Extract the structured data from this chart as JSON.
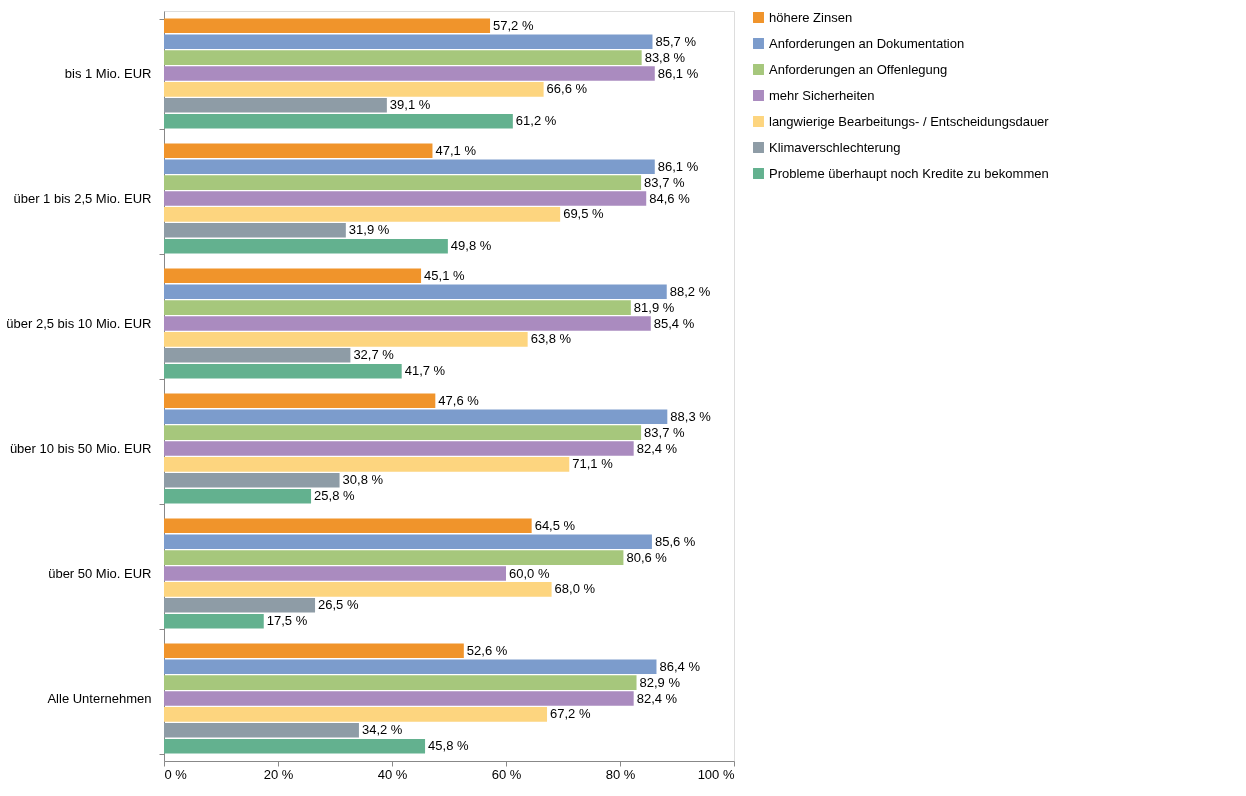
{
  "chart_data": {
    "type": "bar",
    "orientation": "horizontal",
    "legend": "right",
    "grid": false,
    "categories": [
      "bis 1 Mio. EUR",
      "über 1 bis 2,5 Mio. EUR",
      "über 2,5 bis 10 Mio. EUR",
      "über 10 bis 50 Mio. EUR",
      "über 50 Mio. EUR",
      "Alle Unternehmen"
    ],
    "xlim": [
      0,
      100
    ],
    "xticks": [
      {
        "value": 0,
        "label": "0 %"
      },
      {
        "value": 20,
        "label": "20 %"
      },
      {
        "value": 40,
        "label": "40 %"
      },
      {
        "value": 60,
        "label": "60 %"
      },
      {
        "value": 80,
        "label": "80 %"
      },
      {
        "value": 100,
        "label": "100 %"
      }
    ],
    "series": [
      {
        "name": "höhere Zinsen",
        "color": "#f0942b",
        "values": [
          57.2,
          47.1,
          45.1,
          47.6,
          64.5,
          52.6
        ],
        "value_labels": [
          "57,2 %",
          "47,1 %",
          "45,1 %",
          "47,6 %",
          "64,5 %",
          "52,6 %"
        ]
      },
      {
        "name": "Anforderungen an Dokumentation",
        "color": "#7c9ccc",
        "values": [
          85.7,
          86.1,
          88.2,
          88.3,
          85.6,
          86.4
        ],
        "value_labels": [
          "85,7 %",
          "86,1 %",
          "88,2 %",
          "88,3 %",
          "85,6 %",
          "86,4 %"
        ]
      },
      {
        "name": "Anforderungen an Offenlegung",
        "color": "#a6c77c",
        "values": [
          83.8,
          83.7,
          81.9,
          83.7,
          80.6,
          82.9
        ],
        "value_labels": [
          "83,8 %",
          "83,7 %",
          "81,9 %",
          "83,7 %",
          "80,6 %",
          "82,9 %"
        ]
      },
      {
        "name": "mehr Sicherheiten",
        "color": "#aa8bbf",
        "values": [
          86.1,
          84.6,
          85.4,
          82.4,
          60.0,
          82.4
        ],
        "value_labels": [
          "86,1 %",
          "84,6 %",
          "85,4 %",
          "82,4 %",
          "60,0 %",
          "82,4 %"
        ]
      },
      {
        "name": "langwierige Bearbeitungs- / Entscheidungsdauer",
        "color": "#fdd57f",
        "values": [
          66.6,
          69.5,
          63.8,
          71.1,
          68.0,
          67.2
        ],
        "value_labels": [
          "66,6 %",
          "69,5 %",
          "63,8 %",
          "71,1 %",
          "68,0 %",
          "67,2 %"
        ]
      },
      {
        "name": "Klimaverschlechterung",
        "color": "#8e9ca6",
        "values": [
          39.1,
          31.9,
          32.7,
          30.8,
          26.5,
          34.2
        ],
        "value_labels": [
          "39,1 %",
          "31,9 %",
          "32,7 %",
          "30,8 %",
          "26,5 %",
          "34,2 %"
        ]
      },
      {
        "name": "Probleme überhaupt noch Kredite zu bekommen",
        "color": "#63b18f",
        "values": [
          61.2,
          49.8,
          41.7,
          25.8,
          17.5,
          45.8
        ],
        "value_labels": [
          "61,2 %",
          "49,8 %",
          "41,7 %",
          "25,8 %",
          "17,5 %",
          "45,8 %"
        ]
      }
    ]
  }
}
